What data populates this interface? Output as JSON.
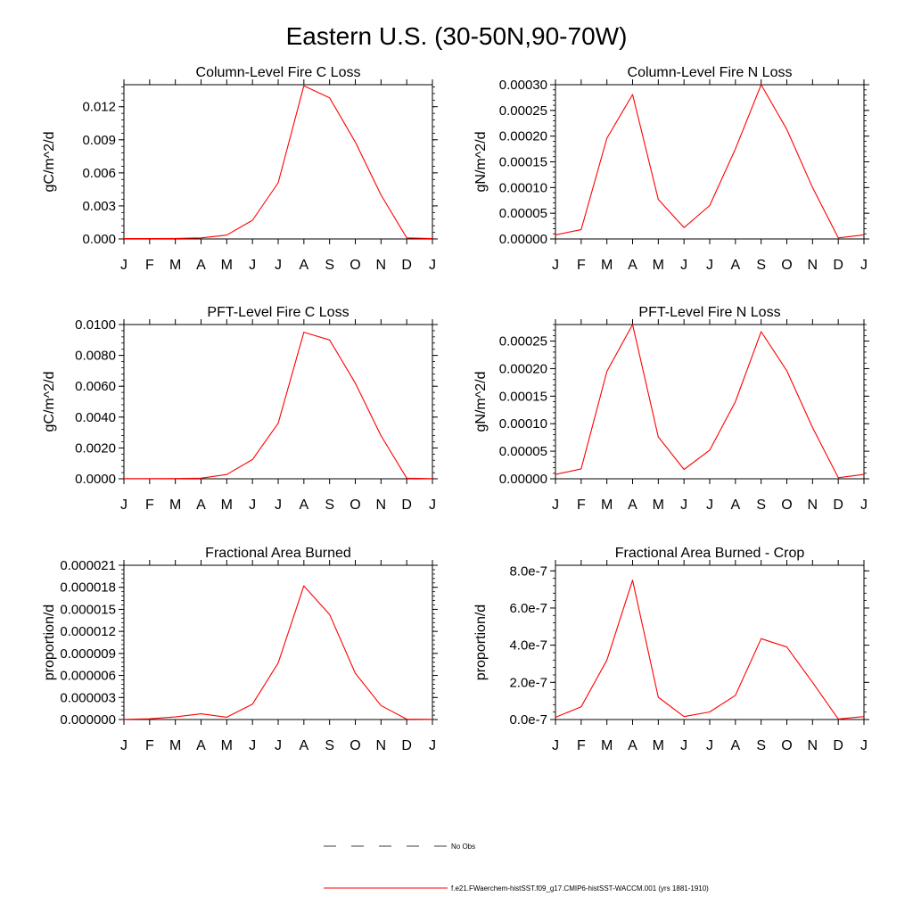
{
  "title": "Eastern U.S. (30-50N,90-70W)",
  "colors": {
    "series": "#ff0000",
    "axis": "#000000",
    "legend_obs": "#000000"
  },
  "legend": {
    "obs_label": "No Obs",
    "model_label": "f.e21.FWaerchem-histSST.f09_g17.CMIP6-histSST-WACCM.001 (yrs 1881-1910)"
  },
  "chart_data": [
    {
      "type": "line",
      "title": "Column-Level Fire C Loss",
      "ylabel": "gC/m^2/d",
      "categories": [
        "J",
        "F",
        "M",
        "A",
        "M",
        "J",
        "J",
        "A",
        "S",
        "O",
        "N",
        "D",
        "J"
      ],
      "ylim": [
        0,
        0.014
      ],
      "yticks": [
        0,
        0.003,
        0.006,
        0.009,
        0.012
      ],
      "yticklabels": [
        "0.000",
        "0.003",
        "0.006",
        "0.009",
        "0.012"
      ],
      "series": [
        {
          "values": [
            3e-05,
            3e-05,
            5e-05,
            0.0001,
            0.00035,
            0.0017,
            0.0051,
            0.0139,
            0.0128,
            0.0088,
            0.004,
            0.0001,
            3e-05
          ]
        }
      ]
    },
    {
      "type": "line",
      "title": "Column-Level Fire N Loss",
      "ylabel": "gN/m^2/d",
      "categories": [
        "J",
        "F",
        "M",
        "A",
        "M",
        "J",
        "J",
        "A",
        "S",
        "O",
        "N",
        "D",
        "J"
      ],
      "ylim": [
        0,
        0.0003
      ],
      "yticks": [
        0,
        5e-05,
        0.0001,
        0.00015,
        0.0002,
        0.00025,
        0.0003
      ],
      "yticklabels": [
        "0.00000",
        "0.00005",
        "0.00010",
        "0.00015",
        "0.00020",
        "0.00025",
        "0.00030"
      ],
      "series": [
        {
          "values": [
            8e-06,
            1.8e-05,
            0.000196,
            0.000281,
            7.7e-05,
            2.2e-05,
            6.5e-05,
            0.000175,
            0.0003,
            0.000213,
            0.0001,
            2e-06,
            8e-06
          ]
        }
      ]
    },
    {
      "type": "line",
      "title": "PFT-Level Fire C Loss",
      "ylabel": "gC/m^2/d",
      "categories": [
        "J",
        "F",
        "M",
        "A",
        "M",
        "J",
        "J",
        "A",
        "S",
        "O",
        "N",
        "D",
        "J"
      ],
      "ylim": [
        0,
        0.01
      ],
      "yticks": [
        0,
        0.002,
        0.004,
        0.006,
        0.008,
        0.01
      ],
      "yticklabels": [
        "0.0000",
        "0.0020",
        "0.0040",
        "0.0060",
        "0.0080",
        "0.0100"
      ],
      "series": [
        {
          "values": [
            1e-05,
            1e-05,
            2e-05,
            4e-05,
            0.00028,
            0.00125,
            0.0036,
            0.0095,
            0.009,
            0.0062,
            0.0028,
            4e-05,
            1e-05
          ]
        }
      ]
    },
    {
      "type": "line",
      "title": "PFT-Level Fire N Loss",
      "ylabel": "gN/m^2/d",
      "categories": [
        "J",
        "F",
        "M",
        "A",
        "M",
        "J",
        "J",
        "A",
        "S",
        "O",
        "N",
        "D",
        "J"
      ],
      "ylim": [
        0,
        0.00028
      ],
      "yticks": [
        0,
        5e-05,
        0.0001,
        0.00015,
        0.0002,
        0.00025
      ],
      "yticklabels": [
        "0.00000",
        "0.00005",
        "0.00010",
        "0.00015",
        "0.00020",
        "0.00025"
      ],
      "series": [
        {
          "values": [
            8e-06,
            1.8e-05,
            0.000195,
            0.00028,
            7.6e-05,
            1.7e-05,
            5.2e-05,
            0.00014,
            0.000267,
            0.000196,
            9.3e-05,
            2e-06,
            8e-06
          ]
        }
      ]
    },
    {
      "type": "line",
      "title": "Fractional Area Burned",
      "ylabel": "proportion/d",
      "categories": [
        "J",
        "F",
        "M",
        "A",
        "M",
        "J",
        "J",
        "A",
        "S",
        "O",
        "N",
        "D",
        "J"
      ],
      "ylim": [
        0,
        2.1e-05
      ],
      "yticks": [
        0,
        3e-06,
        6e-06,
        9e-06,
        1.2e-05,
        1.5e-05,
        1.8e-05,
        2.1e-05
      ],
      "yticklabels": [
        "0.000000",
        "0.000003",
        "0.000006",
        "0.000009",
        "0.000012",
        "0.000015",
        "0.000018",
        "0.000021"
      ],
      "series": [
        {
          "values": [
            3e-08,
            1e-07,
            3.5e-07,
            7.8e-07,
            3.2e-07,
            2.1e-06,
            7.7e-06,
            1.82e-05,
            1.43e-05,
            6.3e-06,
            1.9e-06,
            5e-08,
            3e-08
          ]
        }
      ]
    },
    {
      "type": "line",
      "title": "Fractional Area Burned - Crop",
      "ylabel": "proportion/d",
      "categories": [
        "J",
        "F",
        "M",
        "A",
        "M",
        "J",
        "J",
        "A",
        "S",
        "O",
        "N",
        "D",
        "J"
      ],
      "ylim": [
        0,
        8.3e-07
      ],
      "yticks": [
        0,
        2e-07,
        4e-07,
        6e-07,
        8e-07
      ],
      "yticklabels": [
        "0.0e-7",
        "2.0e-7",
        "4.0e-7",
        "6.0e-7",
        "8.0e-7"
      ],
      "series": [
        {
          "values": [
            1.2e-08,
            6.8e-08,
            3.2e-07,
            7.5e-07,
            1.2e-07,
            1.6e-08,
            4.1e-08,
            1.3e-07,
            4.35e-07,
            3.9e-07,
            2e-07,
            3e-09,
            1.6e-08
          ]
        }
      ]
    }
  ]
}
